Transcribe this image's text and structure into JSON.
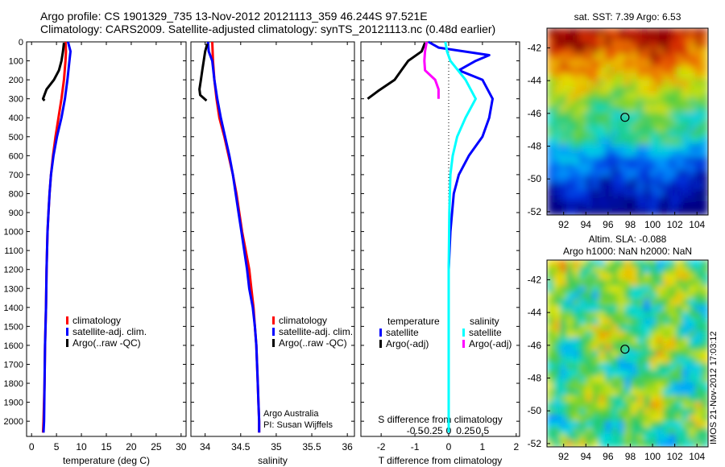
{
  "header": {
    "line1": "Argo profile: CS 1901329_735 13-Nov-2012 20121113_359 46.244S 97.521E",
    "line2": "Climatology: CARS2009. Satellite-adjusted climatology: synTS_20121113.nc (0.48d earlier)"
  },
  "side_stamp": "IMOS 21-Nov-2012 17:03:12",
  "colors": {
    "climatology": "#ff0000",
    "satellite": "#0000ff",
    "argo": "#000000",
    "sat_salinity": "#00ffff",
    "argo_salinity": "#ff00ff"
  },
  "chart_data": [
    {
      "type": "line",
      "panel": "temperature",
      "xlabel": "temperature (deg C)",
      "ylabel": "",
      "xlim": [
        -1,
        31
      ],
      "ylim": [
        2080,
        0
      ],
      "x_ticks": [
        0,
        5,
        10,
        15,
        20,
        25,
        30
      ],
      "y_ticks": [
        0,
        100,
        200,
        300,
        400,
        500,
        600,
        700,
        800,
        900,
        1000,
        1100,
        1200,
        1300,
        1400,
        1500,
        1600,
        1700,
        1800,
        1900,
        2000
      ],
      "legend": [
        "climatology",
        "satellite-adj. clim.",
        "Argo(..raw -QC)"
      ],
      "series": [
        {
          "name": "climatology",
          "color": "#ff0000",
          "points": [
            [
              6.8,
              0
            ],
            [
              6.9,
              50
            ],
            [
              6.8,
              100
            ],
            [
              6.5,
              200
            ],
            [
              6.0,
              300
            ],
            [
              5.4,
              400
            ],
            [
              4.8,
              500
            ],
            [
              4.3,
              600
            ],
            [
              3.9,
              700
            ],
            [
              3.6,
              800
            ],
            [
              3.4,
              900
            ],
            [
              3.2,
              1000
            ],
            [
              3.0,
              1200
            ],
            [
              2.9,
              1400
            ],
            [
              2.7,
              1600
            ],
            [
              2.6,
              1800
            ],
            [
              2.4,
              2000
            ],
            [
              2.3,
              2060
            ]
          ]
        },
        {
          "name": "satellite-adj. clim.",
          "color": "#0000ff",
          "points": [
            [
              7.3,
              0
            ],
            [
              7.8,
              50
            ],
            [
              7.6,
              100
            ],
            [
              7.2,
              200
            ],
            [
              6.7,
              300
            ],
            [
              6.0,
              400
            ],
            [
              5.1,
              500
            ],
            [
              4.4,
              600
            ],
            [
              3.9,
              700
            ],
            [
              3.6,
              800
            ],
            [
              3.4,
              900
            ],
            [
              3.2,
              1000
            ],
            [
              3.0,
              1200
            ],
            [
              2.9,
              1400
            ],
            [
              2.7,
              1600
            ],
            [
              2.6,
              1800
            ],
            [
              2.5,
              2000
            ],
            [
              2.4,
              2060
            ]
          ]
        },
        {
          "name": "Argo(..raw -QC)",
          "color": "#000000",
          "points": [
            [
              6.5,
              5
            ],
            [
              6.3,
              50
            ],
            [
              6.0,
              100
            ],
            [
              5.5,
              150
            ],
            [
              4.5,
              200
            ],
            [
              3.0,
              250
            ],
            [
              2.3,
              300
            ],
            [
              2.6,
              310
            ]
          ]
        }
      ]
    },
    {
      "type": "line",
      "panel": "salinity",
      "xlabel": "salinity",
      "ylabel": "",
      "xlim": [
        33.8,
        36.1
      ],
      "ylim": [
        2080,
        0
      ],
      "x_ticks": [
        34,
        34.5,
        35,
        35.5,
        36
      ],
      "x_tick_labels": [
        "34",
        "34.5",
        "35",
        "35.5",
        "36"
      ],
      "legend": [
        "climatology",
        "satellite-adj. clim.",
        "Argo(..raw -QC)"
      ],
      "annotation": [
        "Argo Australia",
        "PI: Susan Wijffels"
      ],
      "series": [
        {
          "name": "climatology",
          "color": "#ff0000",
          "points": [
            [
              34.1,
              0
            ],
            [
              34.11,
              100
            ],
            [
              34.13,
              200
            ],
            [
              34.16,
              300
            ],
            [
              34.2,
              400
            ],
            [
              34.27,
              500
            ],
            [
              34.33,
              600
            ],
            [
              34.39,
              700
            ],
            [
              34.44,
              800
            ],
            [
              34.48,
              900
            ],
            [
              34.52,
              1000
            ],
            [
              34.57,
              1100
            ],
            [
              34.62,
              1200
            ],
            [
              34.65,
              1300
            ],
            [
              34.68,
              1400
            ],
            [
              34.7,
              1500
            ],
            [
              34.72,
              1600
            ],
            [
              34.73,
              1700
            ],
            [
              34.74,
              1800
            ],
            [
              34.75,
              1900
            ],
            [
              34.76,
              2000
            ],
            [
              34.76,
              2060
            ]
          ]
        },
        {
          "name": "satellite-adj. clim.",
          "color": "#0000ff",
          "points": [
            [
              34.04,
              0
            ],
            [
              34.05,
              50
            ],
            [
              34.1,
              100
            ],
            [
              34.13,
              200
            ],
            [
              34.17,
              300
            ],
            [
              34.22,
              400
            ],
            [
              34.28,
              500
            ],
            [
              34.34,
              600
            ],
            [
              34.39,
              700
            ],
            [
              34.43,
              800
            ],
            [
              34.47,
              900
            ],
            [
              34.51,
              1000
            ],
            [
              34.55,
              1100
            ],
            [
              34.59,
              1200
            ],
            [
              34.62,
              1300
            ],
            [
              34.67,
              1400
            ],
            [
              34.7,
              1500
            ],
            [
              34.72,
              1600
            ],
            [
              34.73,
              1700
            ],
            [
              34.74,
              1800
            ],
            [
              34.75,
              1900
            ],
            [
              34.76,
              2000
            ],
            [
              34.76,
              2060
            ]
          ]
        },
        {
          "name": "Argo(..raw -QC)",
          "color": "#000000",
          "points": [
            [
              34.03,
              10
            ],
            [
              34.0,
              50
            ],
            [
              33.98,
              100
            ],
            [
              33.96,
              150
            ],
            [
              33.94,
              200
            ],
            [
              33.92,
              250
            ],
            [
              33.93,
              280
            ],
            [
              34.02,
              310
            ]
          ]
        }
      ]
    },
    {
      "type": "line",
      "panel": "difference",
      "xlabel": "T difference from climatology",
      "xlabel_top": "S difference from climatology",
      "xlim": [
        -2.6,
        2.1
      ],
      "ylim": [
        2080,
        0
      ],
      "t_ticks": [
        -2,
        -1,
        0,
        1,
        2
      ],
      "s_ticks": [
        -0.5,
        -0.25,
        0,
        0.25,
        0.5
      ],
      "s_tick_labels": [
        "-0.5",
        "-0.25",
        "0",
        "0.25",
        "0.5"
      ],
      "legend_groups": [
        {
          "title": "temperature",
          "entries": [
            "satellite",
            "Argo(-adj)"
          ]
        },
        {
          "title": "salinity",
          "entries": [
            "satellite",
            "Argo(-adj)"
          ]
        }
      ],
      "series": [
        {
          "name": "temperature satellite",
          "color": "#0000ff",
          "points": [
            [
              -0.6,
              0
            ],
            [
              -0.3,
              30
            ],
            [
              1.2,
              70
            ],
            [
              0.8,
              100
            ],
            [
              0.3,
              150
            ],
            [
              1.0,
              200
            ],
            [
              1.3,
              300
            ],
            [
              1.2,
              400
            ],
            [
              1.0,
              500
            ],
            [
              0.6,
              600
            ],
            [
              0.3,
              700
            ],
            [
              0.15,
              800
            ],
            [
              0.05,
              1000
            ],
            [
              0,
              1200
            ],
            [
              0,
              1500
            ],
            [
              0,
              1800
            ],
            [
              0,
              2060
            ]
          ]
        },
        {
          "name": "temperature Argo(-adj)",
          "color": "#000000",
          "points": [
            [
              -0.7,
              5
            ],
            [
              -0.8,
              50
            ],
            [
              -1.2,
              100
            ],
            [
              -1.4,
              150
            ],
            [
              -1.6,
              200
            ],
            [
              -2.1,
              260
            ],
            [
              -2.4,
              300
            ]
          ]
        },
        {
          "name": "salinity satellite",
          "color": "#00ffff",
          "points": [
            [
              -0.1,
              0
            ],
            [
              -0.05,
              50
            ],
            [
              0.05,
              100
            ],
            [
              0.5,
              200
            ],
            [
              0.8,
              300
            ],
            [
              0.5,
              400
            ],
            [
              0.25,
              500
            ],
            [
              0.12,
              600
            ],
            [
              0.05,
              700
            ],
            [
              0.02,
              900
            ],
            [
              0,
              1200
            ],
            [
              0,
              2060
            ]
          ]
        },
        {
          "name": "salinity Argo(-adj)",
          "color": "#ff00ff",
          "points": [
            [
              -0.65,
              0
            ],
            [
              -0.7,
              50
            ],
            [
              -0.72,
              100
            ],
            [
              -0.7,
              150
            ],
            [
              -0.4,
              200
            ],
            [
              -0.3,
              250
            ],
            [
              -0.3,
              300
            ]
          ]
        }
      ]
    },
    {
      "type": "heatmap",
      "panel": "sst_map",
      "title": "sat. SST: 7.39 Argo: 6.53",
      "x_ticks": [
        92,
        94,
        96,
        98,
        100,
        102,
        104
      ],
      "y_ticks": [
        -42,
        -44,
        -46,
        -48,
        -50,
        -52
      ],
      "xlim": [
        90.5,
        105
      ],
      "ylim": [
        -52.2,
        -40.8
      ],
      "marker": [
        97.52,
        -46.24
      ],
      "field": "SST, warm (red) in north to cold (dark blue) in south"
    },
    {
      "type": "heatmap",
      "panel": "sla_map",
      "title": "Altim. SLA: -0.088",
      "subtitle": "Argo h1000: NaN h2000: NaN",
      "x_ticks": [
        92,
        94,
        96,
        98,
        100,
        102,
        104
      ],
      "y_ticks": [
        -42,
        -44,
        -46,
        -48,
        -50,
        -52
      ],
      "xlim": [
        90.5,
        105
      ],
      "ylim": [
        -52.2,
        -40.8
      ],
      "marker": [
        97.52,
        -46.24
      ]
    }
  ]
}
